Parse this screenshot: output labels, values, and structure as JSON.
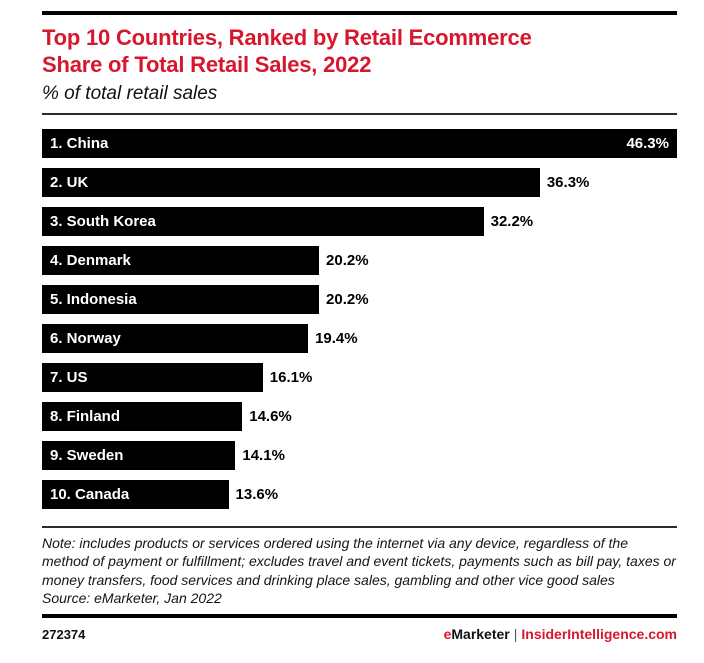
{
  "header": {
    "title_line1": "Top 10 Countries, Ranked by Retail Ecommerce",
    "title_line2": "Share of Total Retail Sales, 2022",
    "subtitle": "% of total retail sales"
  },
  "chart_data": {
    "type": "bar",
    "orientation": "horizontal",
    "title": "Top 10 Countries, Ranked by Retail Ecommerce Share of Total Retail Sales, 2022",
    "subtitle": "% of total retail sales",
    "unit": "% of total retail sales",
    "xlim": [
      0,
      46.3
    ],
    "grid": false,
    "legend": false,
    "bar_color": "#000000",
    "categories": [
      "1. China",
      "2. UK",
      "3. South Korea",
      "4. Denmark",
      "5. Indonesia",
      "6. Norway",
      "7. US",
      "8. Finland",
      "9. Sweden",
      "10. Canada"
    ],
    "values": [
      46.3,
      36.3,
      32.2,
      20.2,
      20.2,
      19.4,
      16.1,
      14.6,
      14.1,
      13.6
    ],
    "value_labels": [
      "46.3%",
      "36.3%",
      "32.2%",
      "20.2%",
      "20.2%",
      "19.4%",
      "16.1%",
      "14.6%",
      "14.1%",
      "13.6%"
    ],
    "first_value_inside_bar": true
  },
  "footnote": {
    "note": "Note: includes products or services ordered using the internet via any device, regardless of the method of payment or fulfillment; excludes travel and event tickets, payments such as bill pay, taxes or money transfers, food services and drinking place sales, gambling and other vice good sales",
    "source": "Source: eMarketer, Jan 2022"
  },
  "footer": {
    "chart_id": "272374",
    "brand_first_letter": "e",
    "brand_rest": "Marketer",
    "separator": "|",
    "site": "InsiderIntelligence.com"
  },
  "colors": {
    "accent_red": "#d7172d",
    "bar_black": "#000000"
  }
}
